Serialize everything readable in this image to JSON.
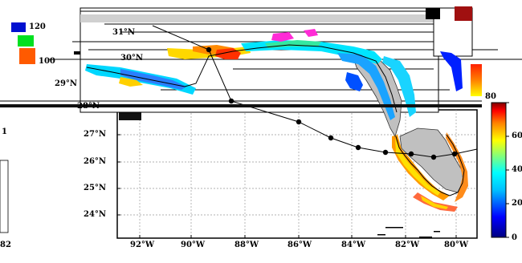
{
  "map": {
    "lat_labels": [
      "24°N",
      "25°N",
      "26°N",
      "27°N",
      "28°N",
      "29°N",
      "30°N",
      "31°N"
    ],
    "lon_labels": [
      "92°W",
      "90°W",
      "88°W",
      "86°W",
      "84°W",
      "82°W",
      "80°W"
    ],
    "colorbar": {
      "ticks": [
        "0",
        "20",
        "40",
        "60",
        "80"
      ],
      "min": 0,
      "max": 80,
      "stops": [
        "#000080",
        "#0000ff",
        "#00bfff",
        "#00ffff",
        "#7fff7f",
        "#ffff00",
        "#ff8000",
        "#ff0000",
        "#800000"
      ]
    },
    "legend_fragment_values": [
      "120",
      "100",
      "80"
    ],
    "left_edge_values": [
      "1",
      "82"
    ],
    "storm_track_color": "#000000",
    "land_fill_color": "#c0c0c0",
    "grid_color": "#999999"
  }
}
